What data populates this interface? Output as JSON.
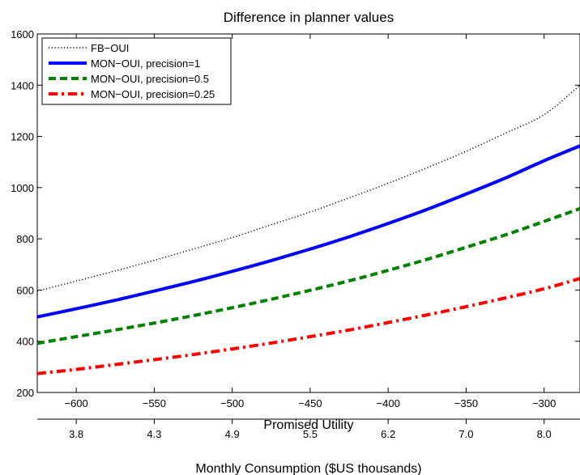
{
  "chart_data": {
    "type": "line",
    "title": "Difference in planner values",
    "xlabel": "Promised Utility",
    "ylabel": "",
    "xlim": [
      -625,
      -277
    ],
    "ylim": [
      200,
      1600
    ],
    "x_ticks": [
      -600,
      -550,
      -500,
      -450,
      -400,
      -350,
      -300
    ],
    "y_ticks": [
      200,
      400,
      600,
      800,
      1000,
      1200,
      1400,
      1600
    ],
    "grid": false,
    "legend_position": "top-left",
    "secondary_x_axis": {
      "label": "Monthly Consumption ($US thousands)",
      "tick_labels": [
        "3.8",
        "4.3",
        "4.9",
        "5.5",
        "6.2",
        "7.0",
        "8.0"
      ]
    },
    "x": [
      -625,
      -600,
      -575,
      -550,
      -525,
      -500,
      -475,
      -450,
      -425,
      -400,
      -375,
      -350,
      -325,
      -300,
      -277
    ],
    "series": [
      {
        "name": "FB−OUI",
        "color": "#000000",
        "style": "dotted",
        "values": [
          596,
          635,
          675,
          716,
          760,
          805,
          855,
          905,
          960,
          1017,
          1078,
          1142,
          1212,
          1285,
          1400
        ]
      },
      {
        "name": "MON−OUI, precision=1",
        "color": "#0000ff",
        "style": "solid",
        "values": [
          495,
          527,
          560,
          596,
          633,
          673,
          715,
          760,
          808,
          860,
          915,
          975,
          1037,
          1105,
          1163
        ]
      },
      {
        "name": "MON−OUI, precision=0.5",
        "color": "#008000",
        "style": "dashed",
        "values": [
          392,
          418,
          444,
          471,
          500,
          531,
          564,
          599,
          636,
          677,
          720,
          767,
          815,
          868,
          918
        ]
      },
      {
        "name": "MON−OUI, precision=0.25",
        "color": "#ff0000",
        "style": "dashdot",
        "values": [
          274,
          290,
          309,
          328,
          348,
          370,
          393,
          418,
          444,
          473,
          503,
          535,
          569,
          605,
          645
        ]
      }
    ]
  }
}
